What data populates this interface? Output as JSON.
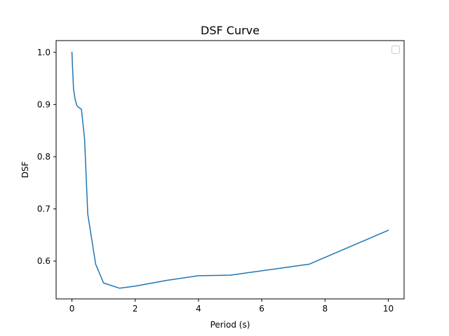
{
  "chart_data": {
    "type": "line",
    "title": "DSF Curve",
    "xlabel": "Period (s)",
    "ylabel": "DSF",
    "xlim": [
      -0.5,
      10.5
    ],
    "ylim": [
      0.5275,
      1.0225
    ],
    "xticks": [
      0,
      2,
      4,
      6,
      8,
      10
    ],
    "xtick_labels": [
      "0",
      "2",
      "4",
      "6",
      "8",
      "10"
    ],
    "yticks": [
      0.6,
      0.7,
      0.8,
      0.9,
      1.0
    ],
    "ytick_labels": [
      "0.6",
      "0.7",
      "0.8",
      "0.9",
      "1.0"
    ],
    "grid": false,
    "legend": {
      "placement": "top-right",
      "entries": []
    },
    "series": [
      {
        "color": "#1f77b4",
        "x": [
          0.0,
          0.02,
          0.05,
          0.1,
          0.15,
          0.2,
          0.25,
          0.3,
          0.4,
          0.5,
          0.75,
          1.0,
          1.5,
          2.0,
          3.0,
          4.0,
          5.0,
          7.5,
          10.0
        ],
        "y": [
          1.0,
          0.97,
          0.93,
          0.91,
          0.899,
          0.895,
          0.893,
          0.891,
          0.834,
          0.69,
          0.594,
          0.558,
          0.548,
          0.552,
          0.563,
          0.572,
          0.573,
          0.594,
          0.659
        ]
      }
    ]
  }
}
